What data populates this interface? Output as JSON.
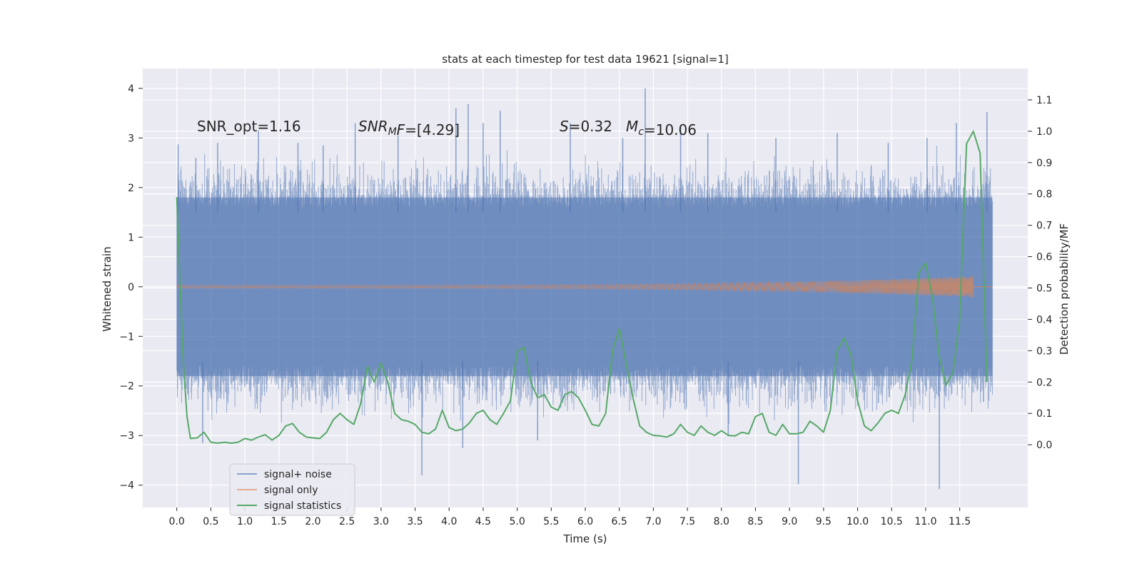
{
  "chart_data": {
    "type": "line",
    "title": "stats at each timestep for test data 19621 [signal=1]",
    "xlabel": "Time (s)",
    "ylabel_left": "Whitened strain",
    "ylabel_right": "Detection probability/MF",
    "xlim": [
      -0.5,
      12.5
    ],
    "ylim_left": [
      -4.45,
      4.4
    ],
    "ylim_right": [
      -0.2,
      1.2
    ],
    "x_ticks": [
      0.0,
      0.5,
      1.0,
      1.5,
      2.0,
      2.5,
      3.0,
      3.5,
      4.0,
      4.5,
      5.0,
      5.5,
      6.0,
      6.5,
      7.0,
      7.5,
      8.0,
      8.5,
      9.0,
      9.5,
      10.0,
      10.5,
      11.0,
      11.5
    ],
    "x_tick_labels": [
      "0.0",
      "0.5",
      "1.0",
      "1.5",
      "2.0",
      "2.5",
      "3.0",
      "3.5",
      "4.0",
      "4.5",
      "5.0",
      "5.5",
      "6.0",
      "6.5",
      "7.0",
      "7.5",
      "8.0",
      "8.5",
      "9.0",
      "9.5",
      "10.0",
      "10.5",
      "11.0",
      "11.5"
    ],
    "y_left_ticks": [
      -4,
      -3,
      -2,
      -1,
      0,
      1,
      2,
      3,
      4
    ],
    "y_left_tick_labels": [
      "−4",
      "−3",
      "−2",
      "−1",
      "0",
      "1",
      "2",
      "3",
      "4"
    ],
    "y_right_ticks": [
      0.0,
      0.1,
      0.2,
      0.3,
      0.4,
      0.5,
      0.6,
      0.7,
      0.8,
      0.9,
      1.0,
      1.1
    ],
    "y_right_tick_labels": [
      "0.0",
      "0.1",
      "0.2",
      "0.3",
      "0.4",
      "0.5",
      "0.6",
      "0.7",
      "0.8",
      "0.9",
      "1.0",
      "1.1"
    ],
    "annotations": [
      {
        "id": "snr-opt",
        "parts": [
          {
            "t": "SNR_opt=1.16"
          }
        ]
      },
      {
        "id": "snr-mf",
        "parts": [
          {
            "t": "SNR",
            "i": true
          },
          {
            "t": "M",
            "i": true,
            "sub": true
          },
          {
            "t": "F",
            "i": true
          },
          {
            "t": "=[4.29]"
          }
        ]
      },
      {
        "id": "s-value",
        "parts": [
          {
            "t": "S",
            "i": true
          },
          {
            "t": "=0.32"
          }
        ]
      },
      {
        "id": "mc-value",
        "parts": [
          {
            "t": "M",
            "i": true
          },
          {
            "t": "c",
            "i": true,
            "sub": true
          },
          {
            "t": "=10.06"
          }
        ]
      }
    ],
    "legend_location": "lower-left",
    "series": [
      {
        "name": "signal+ noise",
        "axis": "left",
        "color": "#4c72b0",
        "style": "noise",
        "x_range": [
          0.0,
          11.98
        ],
        "envelope_typical": [
          -1.8,
          1.8
        ],
        "spikes": [
          {
            "x": 0.02,
            "y": 2.87
          },
          {
            "x": 0.28,
            "y": 2.6
          },
          {
            "x": 0.38,
            "y": -3.15
          },
          {
            "x": 0.6,
            "y": 2.9
          },
          {
            "x": 1.2,
            "y": 3.15
          },
          {
            "x": 1.78,
            "y": 2.9
          },
          {
            "x": 2.15,
            "y": 2.85
          },
          {
            "x": 2.62,
            "y": 3.3
          },
          {
            "x": 3.25,
            "y": 3.05
          },
          {
            "x": 3.6,
            "y": -3.8
          },
          {
            "x": 4.1,
            "y": 3.6
          },
          {
            "x": 4.2,
            "y": -3.25
          },
          {
            "x": 4.28,
            "y": 3.68
          },
          {
            "x": 4.5,
            "y": 3.3
          },
          {
            "x": 4.75,
            "y": 3.55
          },
          {
            "x": 5.3,
            "y": -3.1
          },
          {
            "x": 5.78,
            "y": 3.3
          },
          {
            "x": 6.55,
            "y": 3.0
          },
          {
            "x": 6.88,
            "y": 4.0
          },
          {
            "x": 7.4,
            "y": 3.25
          },
          {
            "x": 7.8,
            "y": 3.1
          },
          {
            "x": 8.1,
            "y": -3.0
          },
          {
            "x": 8.8,
            "y": 3.0
          },
          {
            "x": 9.13,
            "y": -3.98
          },
          {
            "x": 9.7,
            "y": 3.1
          },
          {
            "x": 10.45,
            "y": 2.9
          },
          {
            "x": 11.02,
            "y": 3.0
          },
          {
            "x": 11.2,
            "y": -4.08
          },
          {
            "x": 11.45,
            "y": 3.3
          },
          {
            "x": 11.9,
            "y": 3.52
          }
        ]
      },
      {
        "name": "signal only",
        "axis": "left",
        "color": "#dd8452",
        "style": "chirp",
        "x_range": [
          0.0,
          11.7
        ],
        "amplitude_start": 0.03,
        "amplitude_end": 0.22
      },
      {
        "name": "signal statistics",
        "axis": "right",
        "color": "#55a868",
        "style": "line",
        "x": [
          0.0,
          0.05,
          0.1,
          0.15,
          0.2,
          0.3,
          0.4,
          0.5,
          0.6,
          0.7,
          0.8,
          0.9,
          1.0,
          1.1,
          1.2,
          1.3,
          1.4,
          1.5,
          1.6,
          1.7,
          1.8,
          1.9,
          2.0,
          2.1,
          2.2,
          2.3,
          2.4,
          2.5,
          2.6,
          2.7,
          2.8,
          2.9,
          3.0,
          3.1,
          3.2,
          3.3,
          3.4,
          3.5,
          3.6,
          3.7,
          3.8,
          3.9,
          4.0,
          4.1,
          4.2,
          4.3,
          4.4,
          4.5,
          4.6,
          4.7,
          4.8,
          4.9,
          5.0,
          5.1,
          5.2,
          5.3,
          5.4,
          5.5,
          5.6,
          5.7,
          5.8,
          5.9,
          6.0,
          6.1,
          6.2,
          6.3,
          6.4,
          6.5,
          6.6,
          6.7,
          6.8,
          6.9,
          7.0,
          7.1,
          7.2,
          7.3,
          7.4,
          7.5,
          7.6,
          7.7,
          7.8,
          7.9,
          8.0,
          8.1,
          8.2,
          8.3,
          8.4,
          8.5,
          8.6,
          8.7,
          8.8,
          8.9,
          9.0,
          9.1,
          9.2,
          9.3,
          9.4,
          9.5,
          9.6,
          9.7,
          9.8,
          9.9,
          10.0,
          10.1,
          10.2,
          10.3,
          10.4,
          10.5,
          10.6,
          10.7,
          10.8,
          10.9,
          11.0,
          11.1,
          11.2,
          11.3,
          11.4,
          11.5,
          11.6,
          11.7,
          11.8,
          11.9
        ],
        "values": [
          0.79,
          0.5,
          0.25,
          0.09,
          0.02,
          0.022,
          0.04,
          0.008,
          0.005,
          0.008,
          0.005,
          0.008,
          0.02,
          0.015,
          0.025,
          0.032,
          0.015,
          0.03,
          0.06,
          0.068,
          0.04,
          0.025,
          0.022,
          0.02,
          0.04,
          0.08,
          0.1,
          0.08,
          0.065,
          0.13,
          0.25,
          0.2,
          0.26,
          0.2,
          0.1,
          0.08,
          0.075,
          0.065,
          0.04,
          0.035,
          0.05,
          0.11,
          0.055,
          0.045,
          0.05,
          0.07,
          0.1,
          0.11,
          0.08,
          0.065,
          0.1,
          0.14,
          0.3,
          0.31,
          0.2,
          0.15,
          0.16,
          0.12,
          0.11,
          0.16,
          0.17,
          0.15,
          0.11,
          0.065,
          0.06,
          0.1,
          0.3,
          0.37,
          0.26,
          0.15,
          0.06,
          0.04,
          0.03,
          0.028,
          0.025,
          0.035,
          0.065,
          0.04,
          0.03,
          0.06,
          0.04,
          0.03,
          0.045,
          0.03,
          0.028,
          0.04,
          0.035,
          0.09,
          0.1,
          0.04,
          0.03,
          0.065,
          0.035,
          0.035,
          0.04,
          0.075,
          0.06,
          0.04,
          0.11,
          0.3,
          0.34,
          0.29,
          0.14,
          0.06,
          0.045,
          0.07,
          0.1,
          0.11,
          0.1,
          0.16,
          0.27,
          0.55,
          0.58,
          0.47,
          0.28,
          0.19,
          0.23,
          0.4,
          0.96,
          1.0,
          0.93,
          0.2
        ]
      }
    ]
  }
}
